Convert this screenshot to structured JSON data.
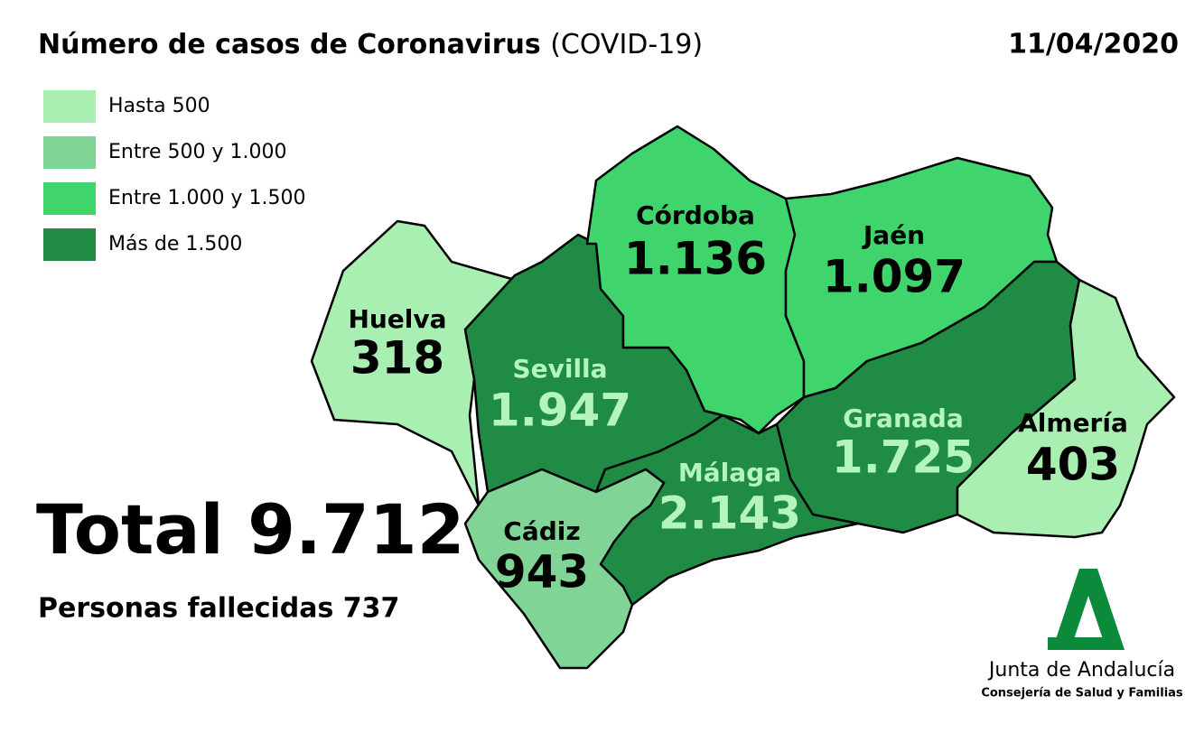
{
  "header": {
    "title": "Número de casos de Coronavirus",
    "title_suffix": "(COVID-19)",
    "date": "11/04/2020"
  },
  "legend": [
    {
      "label": "Hasta 500",
      "color": "#a9efb1"
    },
    {
      "label": "Entre 500 y 1.000",
      "color": "#80d596"
    },
    {
      "label": "Entre 1.000 y 1.500",
      "color": "#3fd56c"
    },
    {
      "label": "Más de 1.500",
      "color": "#1f8b45"
    }
  ],
  "provinces": [
    {
      "name": "Huelva",
      "value": "318",
      "color": "#a9efb1",
      "text_color": "#000000"
    },
    {
      "name": "Sevilla",
      "value": "1.947",
      "color": "#1f8b45",
      "text_color": "#b3f5bd"
    },
    {
      "name": "Córdoba",
      "value": "1.136",
      "color": "#3fd56c",
      "text_color": "#000000"
    },
    {
      "name": "Jaén",
      "value": "1.097",
      "color": "#3fd56c",
      "text_color": "#000000"
    },
    {
      "name": "Granada",
      "value": "1.725",
      "color": "#1f8b45",
      "text_color": "#b3f5bd"
    },
    {
      "name": "Almería",
      "value": "403",
      "color": "#a9efb1",
      "text_color": "#000000"
    },
    {
      "name": "Málaga",
      "value": "2.143",
      "color": "#1f8b45",
      "text_color": "#b3f5bd"
    },
    {
      "name": "Cádiz",
      "value": "943",
      "color": "#80d596",
      "text_color": "#000000"
    }
  ],
  "summary": {
    "total": "Total 9.712",
    "deaths": "Personas fallecidas 737"
  },
  "logo": {
    "name": "Junta de Andalucía",
    "department": "Consejería de Salud y Familias"
  }
}
